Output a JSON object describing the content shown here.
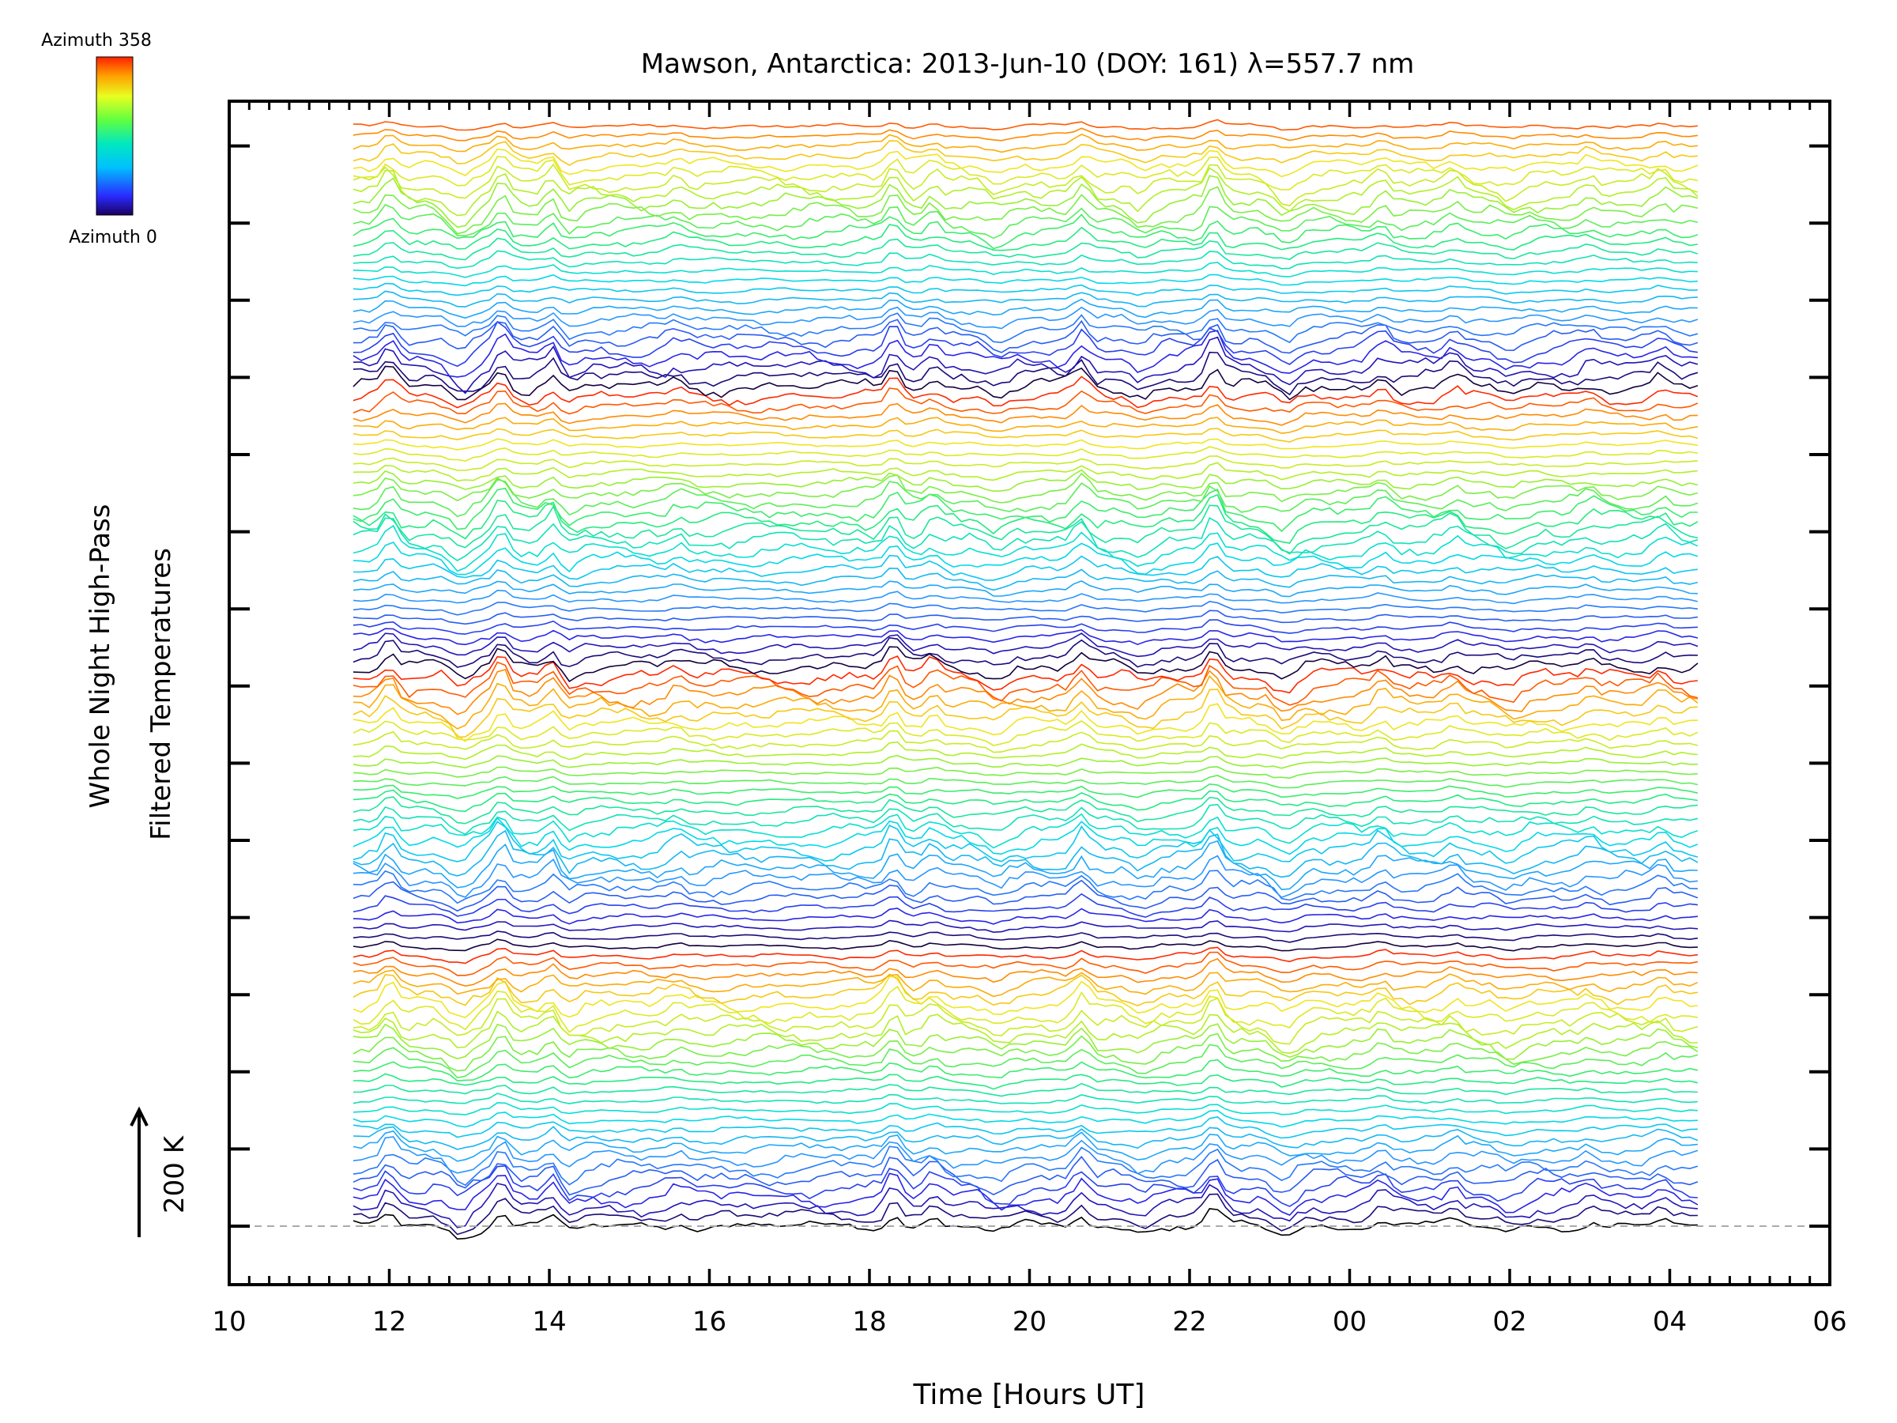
{
  "chart_data": {
    "type": "line",
    "title": "Mawson, Antarctica: 2013-Jun-10 (DOY: 161) λ=557.7 nm",
    "xlabel": "Time [Hours UT]",
    "ylabel_line1": "Whole Night High-Pass",
    "ylabel_line2": "Filtered Temperatures",
    "scale_label": "200 K",
    "x_range_hours": [
      10,
      30
    ],
    "x_tick_labels": [
      "10",
      "12",
      "14",
      "16",
      "18",
      "20",
      "22",
      "00",
      "02",
      "04",
      "06"
    ],
    "data_x_range_hours": [
      11.55,
      28.4
    ],
    "colorbar": {
      "top_label": "Azimuth 358",
      "bottom_label": "Azimuth 0",
      "colormap": "rainbow (purple-blue-cyan-green-yellow-red)"
    },
    "num_traces": 115,
    "y_ticks": 15,
    "baseline_style": "dashed gray",
    "background": "#ffffff",
    "axis_color": "#000000"
  }
}
